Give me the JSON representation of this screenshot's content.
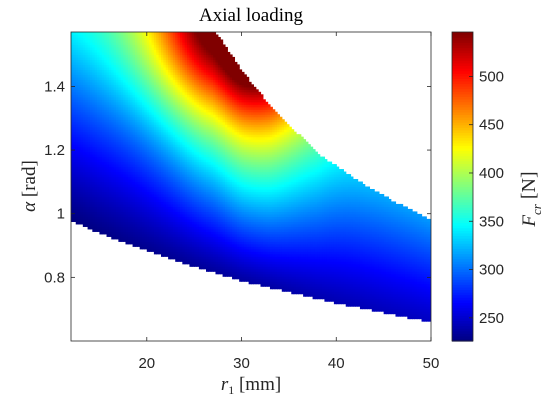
{
  "chart_data": {
    "type": "heatmap",
    "title": "Axial loading",
    "xlabel": "r1 [mm]",
    "ylabel": "α [rad]",
    "colorbar_label": "Fcr [N]",
    "xlim": [
      12,
      50
    ],
    "ylim": [
      0.6,
      1.571
    ],
    "x_ticks": [
      20,
      30,
      40,
      50
    ],
    "y_ticks": [
      0.8,
      1,
      1.2,
      1.4
    ],
    "y_tick_labels": [
      "0.8",
      "1",
      "1.2",
      "1.4"
    ],
    "colorbar_range": [
      226,
      546
    ],
    "colorbar_ticks": [
      250,
      300,
      350,
      400,
      450,
      500
    ],
    "colormap": "jet",
    "grid": false,
    "region_upper_boundary": {
      "r1": [
        12,
        15,
        18,
        20,
        22,
        24,
        26,
        27,
        28,
        30,
        33,
        36,
        38,
        40,
        43,
        46,
        48,
        50
      ],
      "alpha": [
        1.571,
        1.571,
        1.571,
        1.571,
        1.571,
        1.571,
        1.571,
        1.571,
        1.54,
        1.45,
        1.34,
        1.25,
        1.19,
        1.15,
        1.09,
        1.04,
        1.01,
        0.98
      ]
    },
    "region_lower_boundary": {
      "r1": [
        12,
        15,
        20,
        25,
        30,
        35,
        40,
        45,
        50
      ],
      "alpha": [
        0.98,
        0.94,
        0.885,
        0.835,
        0.79,
        0.755,
        0.72,
        0.69,
        0.66
      ]
    },
    "peak": {
      "r1": 28,
      "alpha": 1.5,
      "Fcr": 546
    }
  }
}
